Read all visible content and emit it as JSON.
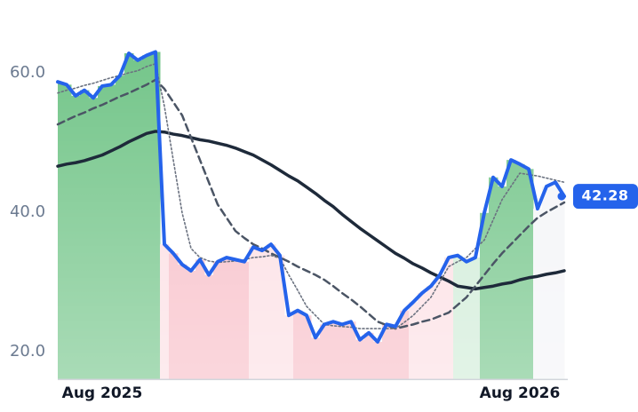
{
  "chart_data": {
    "type": "line",
    "categories": [
      null,
      null,
      null,
      null,
      null,
      "Aug 2025",
      null,
      null,
      null,
      null,
      null,
      null,
      null,
      null,
      null,
      null,
      null,
      null,
      null,
      null,
      null,
      null,
      null,
      null,
      null,
      null,
      null,
      null,
      null,
      null,
      null,
      null,
      null,
      null,
      null,
      null,
      null,
      null,
      null,
      null,
      null,
      null,
      null,
      null,
      null,
      null,
      null,
      null,
      null,
      null,
      null,
      null,
      "Aug 2026",
      null,
      null,
      null,
      null,
      null
    ],
    "ylim": [
      16,
      65
    ],
    "yticks": [
      {
        "value": 20,
        "label": "20.0"
      },
      {
        "value": 40,
        "label": "40.0"
      },
      {
        "value": 60,
        "label": "60.0"
      }
    ],
    "grid": false,
    "series": [
      {
        "color": "#2563eb",
        "style": "solid",
        "width": 4,
        "values": [
          58.7,
          58.3,
          56.7,
          57.5,
          56.4,
          58.1,
          58.3,
          59.6,
          62.8,
          61.8,
          62.5,
          63.0,
          35.4,
          34.1,
          32.5,
          31.6,
          33.2,
          31.0,
          32.9,
          33.5,
          33.2,
          32.9,
          35.0,
          34.5,
          35.4,
          33.8,
          25.2,
          25.9,
          25.2,
          22.0,
          23.9,
          24.3,
          23.9,
          24.3,
          21.7,
          22.7,
          21.4,
          23.9,
          23.6,
          25.9,
          27.1,
          28.4,
          29.4,
          31.0,
          33.5,
          33.8,
          32.9,
          33.5,
          39.9,
          45.0,
          43.7,
          47.5,
          46.9,
          46.2,
          40.5,
          43.7,
          44.3,
          42.28
        ],
        "fill_colors": [
          "#6cc283",
          "#6cc283",
          "#6cc283",
          "#6cc283",
          "#6cc283",
          "#6cc283",
          "#6cc283",
          "#6cc283",
          "#6cc283",
          "#6cc283",
          "#6cc283",
          "#6cc283",
          "#fcdde2",
          "#f7bac4",
          "#f7bac4",
          "#f7bac4",
          "#f7bac4",
          "#f7bac4",
          "#f7bac4",
          "#f7bac4",
          "#f7bac4",
          "#f7bac4",
          "#fcdde2",
          "#fcdde2",
          "#fcdde2",
          "#fcdde2",
          "#fcdde2",
          "#f7bac4",
          "#f7bac4",
          "#f7bac4",
          "#f7bac4",
          "#f7bac4",
          "#f7bac4",
          "#f7bac4",
          "#f7bac4",
          "#f7bac4",
          "#f7bac4",
          "#f7bac4",
          "#f7bac4",
          "#f7bac4",
          "#fcdde2",
          "#fcdde2",
          "#fcdde2",
          "#fcdde2",
          "#fcdde2",
          "#cdebd5",
          "#cdebd5",
          "#cdebd5",
          "#6cc283",
          "#6cc283",
          "#6cc283",
          "#6cc283",
          "#6cc283",
          "#6cc283",
          "#f3f4f7",
          "#f3f4f7",
          "#f3f4f7",
          "#f3f4f7"
        ]
      },
      {
        "color": "#6b7280",
        "style": "dotted",
        "width": 1.6,
        "values": [
          57.1,
          57.5,
          57.8,
          58.2,
          58.5,
          58.9,
          59.3,
          59.6,
          60.0,
          60.3,
          60.9,
          61.3,
          55.2,
          47.5,
          39.9,
          34.8,
          33.5,
          33.0,
          32.8,
          32.9,
          33.0,
          33.2,
          33.5,
          33.6,
          33.8,
          33.4,
          31.0,
          28.8,
          26.5,
          25.2,
          23.9,
          23.7,
          23.6,
          23.5,
          23.3,
          23.3,
          23.3,
          23.3,
          23.3,
          24.2,
          25.2,
          26.5,
          27.8,
          30.0,
          32.2,
          32.9,
          33.5,
          34.8,
          36.0,
          38.9,
          41.8,
          43.7,
          45.6,
          45.4,
          45.2,
          44.9,
          44.6,
          44.3
        ]
      },
      {
        "color": "#4b5565",
        "style": "dashed",
        "width": 2.5,
        "values": [
          52.6,
          53.2,
          53.8,
          54.3,
          54.9,
          55.4,
          56.0,
          56.6,
          57.1,
          57.7,
          58.3,
          59.0,
          57.7,
          55.8,
          53.9,
          50.7,
          47.5,
          44.3,
          41.1,
          39.2,
          37.3,
          36.3,
          35.4,
          34.8,
          34.1,
          33.5,
          32.9,
          32.2,
          31.6,
          31.0,
          30.3,
          29.4,
          28.4,
          27.5,
          26.5,
          25.4,
          24.3,
          23.8,
          23.3,
          23.6,
          23.9,
          24.3,
          24.6,
          25.1,
          25.6,
          26.7,
          27.8,
          29.4,
          31.0,
          32.6,
          34.1,
          35.4,
          36.7,
          38.0,
          39.2,
          40.0,
          40.7,
          41.4
        ]
      },
      {
        "color": "#1e2a3a",
        "style": "solid",
        "width": 3.5,
        "values": [
          46.6,
          46.9,
          47.1,
          47.4,
          47.8,
          48.2,
          48.8,
          49.4,
          50.1,
          50.7,
          51.3,
          51.6,
          51.5,
          51.2,
          51.0,
          50.7,
          50.4,
          50.2,
          49.9,
          49.6,
          49.2,
          48.7,
          48.2,
          47.5,
          46.8,
          46.0,
          45.2,
          44.5,
          43.6,
          42.7,
          41.7,
          40.8,
          39.7,
          38.7,
          37.7,
          36.8,
          35.9,
          35.0,
          34.1,
          33.4,
          32.6,
          32.0,
          31.3,
          30.7,
          30.1,
          29.4,
          29.2,
          29.0,
          29.2,
          29.4,
          29.7,
          29.9,
          30.3,
          30.6,
          30.8,
          31.1,
          31.3,
          31.6
        ]
      }
    ]
  }
}
